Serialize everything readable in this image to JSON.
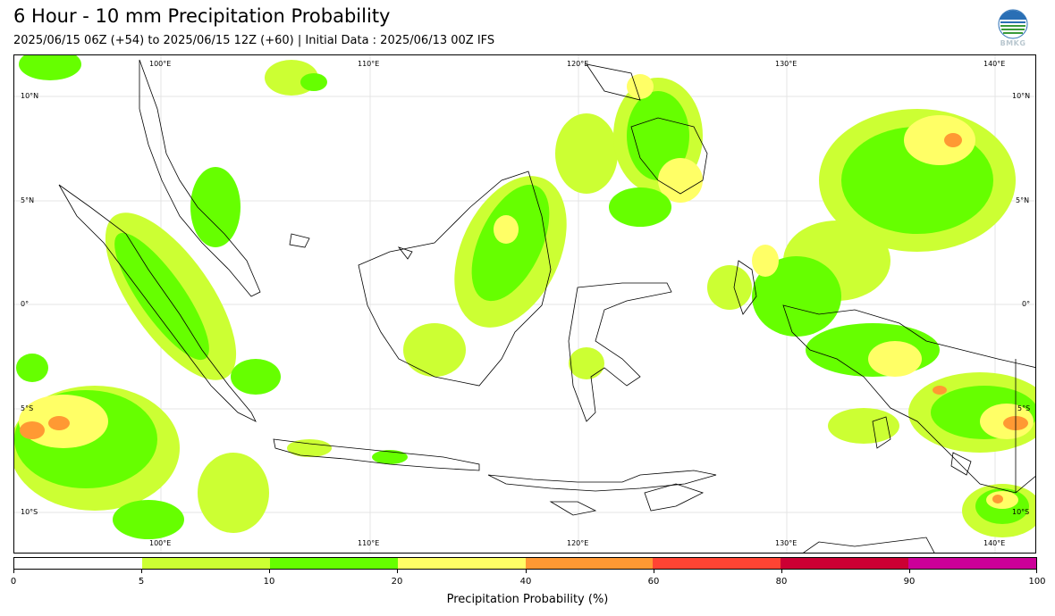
{
  "header": {
    "title": "6 Hour - 10 mm Precipitation Probability",
    "subtitle": "2025/06/15 06Z (+54) to 2025/06/15 12Z (+60) | Initial Data : 2025/06/13 00Z IFS",
    "logo_text": "BMKG"
  },
  "map": {
    "lon_labels": [
      "100°E",
      "110°E",
      "120°E",
      "130°E",
      "140°E"
    ],
    "lat_labels": [
      "10°N",
      "5°N",
      "0°",
      "5°S",
      "10°S"
    ],
    "extent": {
      "lon_min": 93,
      "lon_max": 142,
      "lat_min": -12,
      "lat_max": 12
    }
  },
  "colorbar": {
    "label": "Precipitation Probability (%)",
    "ticks": [
      "0",
      "5",
      "10",
      "20",
      "40",
      "60",
      "80",
      "90",
      "100"
    ],
    "bins": [
      {
        "from": 0,
        "to": 5,
        "color": "#ffffff"
      },
      {
        "from": 5,
        "to": 10,
        "color": "#ccff33"
      },
      {
        "from": 10,
        "to": 20,
        "color": "#66ff00"
      },
      {
        "from": 20,
        "to": 40,
        "color": "#ffff66"
      },
      {
        "from": 40,
        "to": 60,
        "color": "#ff9933"
      },
      {
        "from": 60,
        "to": 80,
        "color": "#ff4433"
      },
      {
        "from": 80,
        "to": 90,
        "color": "#cc0033"
      },
      {
        "from": 90,
        "to": 100,
        "color": "#cc0099"
      }
    ]
  }
}
